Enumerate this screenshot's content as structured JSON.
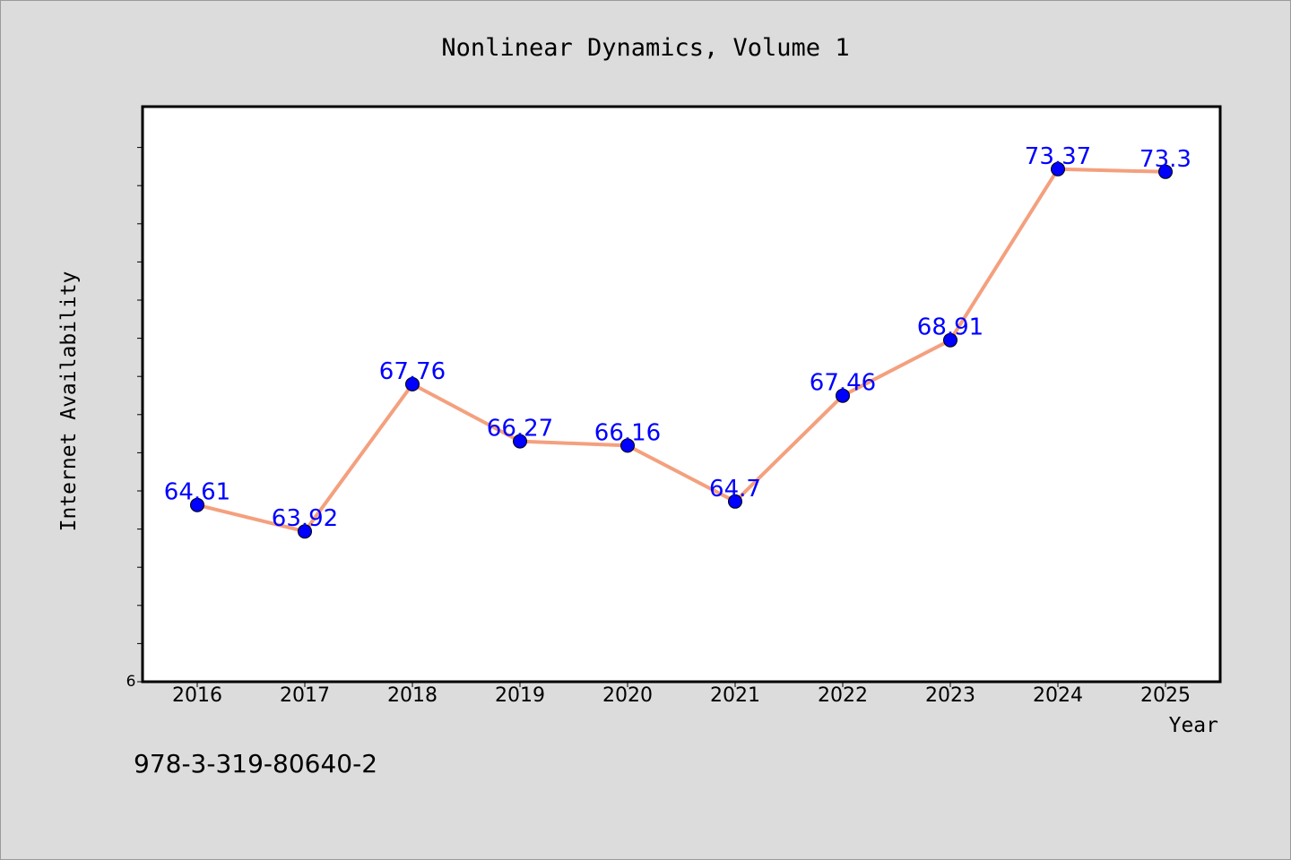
{
  "chart_data": {
    "type": "line",
    "title": "Nonlinear Dynamics, Volume 1",
    "xlabel": "Year",
    "ylabel": "Internet Availability",
    "categories": [
      "2016",
      "2017",
      "2018",
      "2019",
      "2020",
      "2021",
      "2022",
      "2023",
      "2024",
      "2025"
    ],
    "series": [
      {
        "values": [
          64.61,
          63.92,
          67.76,
          66.27,
          66.16,
          64.7,
          67.46,
          68.91,
          73.37,
          73.3
        ],
        "labels": [
          "64.61",
          "63.92",
          "67.76",
          "66.27",
          "66.16",
          "64.7",
          "67.46",
          "68.91",
          "73.37",
          "73.3"
        ]
      }
    ],
    "ylim": [
      60,
      75
    ],
    "y_tick_labels": [
      "6"
    ],
    "grid": false,
    "colors": {
      "line": "#f4a07e",
      "marker": "#0000ff",
      "data_label": "#0000ff",
      "plot_background": "#ffffff",
      "page_background": "#dcdcdc"
    }
  },
  "footer": {
    "isbn": "978-3-319-80640-2"
  }
}
